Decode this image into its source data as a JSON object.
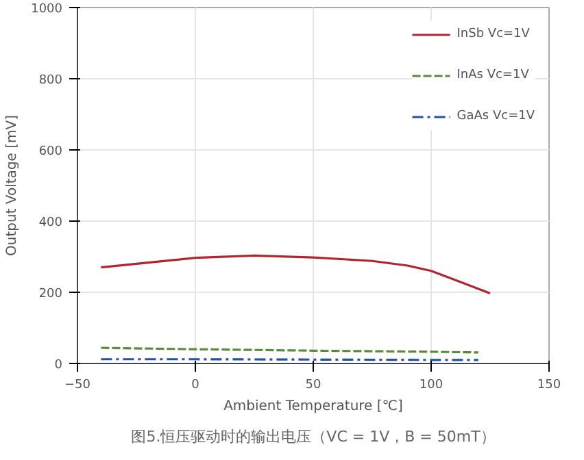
{
  "chart_data": {
    "type": "line",
    "xlabel": "Ambient Temperature [℃]",
    "ylabel": "Output Voltage [mV]",
    "annotations": [
      "图5.恒压驱动时的输出电压（VC = 1V，B = 50mT）"
    ],
    "xlim": [
      -50,
      150
    ],
    "xticks": [
      -50,
      0,
      50,
      100,
      150
    ],
    "ylim": [
      0,
      1000
    ],
    "yticks": [
      0,
      200,
      400,
      600,
      800,
      1000
    ],
    "grid": true,
    "legend": "top right",
    "series": [
      {
        "name": "InSb Vc=1V",
        "color": "#b2252f",
        "line_style": "solid",
        "x": [
          -40,
          -25,
          -10,
          0,
          25,
          50,
          75,
          90,
          100,
          110,
          125
        ],
        "values": [
          270,
          280,
          290,
          297,
          303,
          298,
          288,
          275,
          260,
          235,
          197
        ]
      },
      {
        "name": "InAs Vc=1V",
        "color": "#5a8a3a",
        "line_style": "dashed",
        "x": [
          -40,
          0,
          50,
          100,
          120
        ],
        "values": [
          44,
          40,
          36,
          33,
          31
        ]
      },
      {
        "name": "GaAs Vc=1V",
        "color": "#2050b0",
        "line_style": "dashdot",
        "x": [
          -40,
          0,
          50,
          100,
          120
        ],
        "values": [
          12,
          12,
          11,
          10,
          10
        ]
      }
    ]
  }
}
